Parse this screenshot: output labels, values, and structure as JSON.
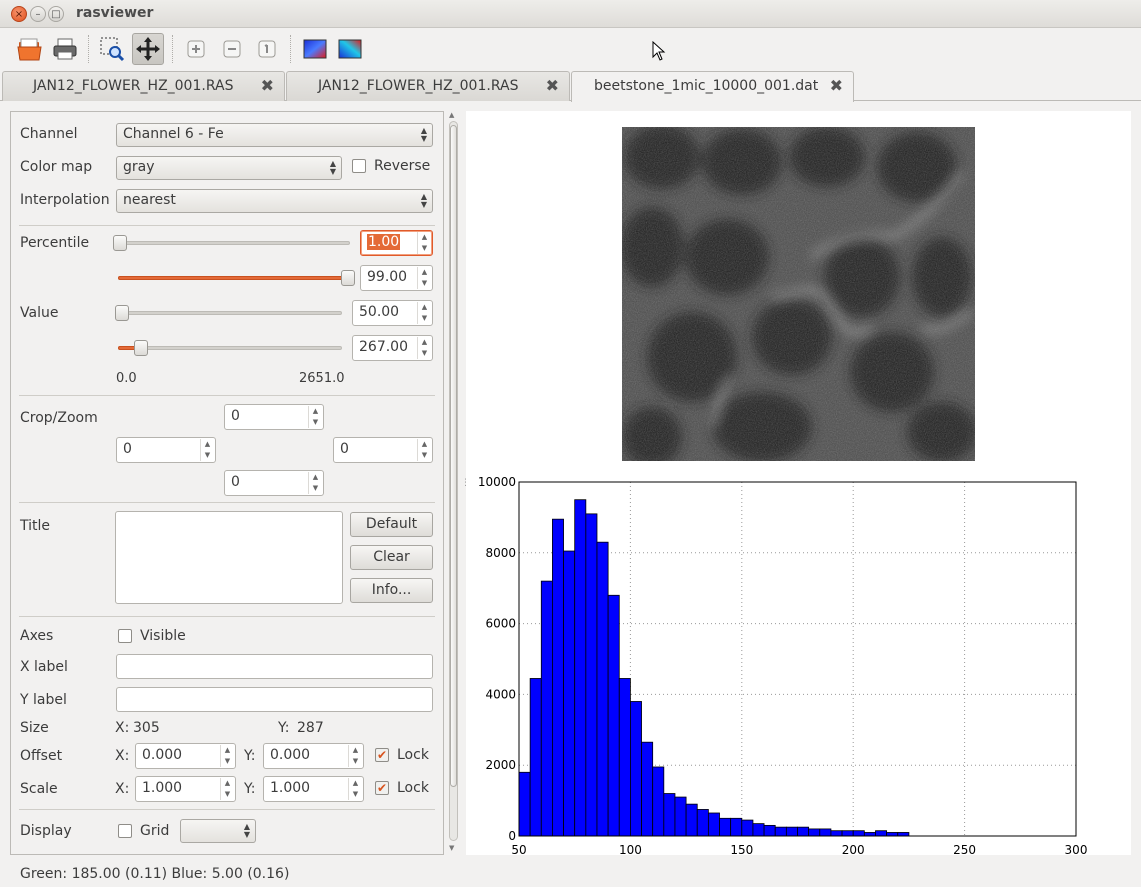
{
  "app": {
    "title": "rasviewer"
  },
  "window_buttons": {
    "close": "×",
    "minimize": "–",
    "maximize": "□"
  },
  "toolbar": {
    "tools": [
      "open-folder-icon",
      "print-icon",
      "zoom-select-icon",
      "pan-move-icon",
      "zoom-in-icon",
      "zoom-out-icon",
      "zoom-reset-icon",
      "colormap-icon",
      "colormap-alt-icon"
    ]
  },
  "tabs": [
    {
      "label": "JAN12_FLOWER_HZ_001.RAS",
      "close": "✖"
    },
    {
      "label": "JAN12_FLOWER_HZ_001.RAS",
      "close": "✖"
    },
    {
      "label": "beetstone_1mic_10000_001.dat",
      "close": "✖",
      "selected": true
    }
  ],
  "panel": {
    "channel": {
      "label": "Channel",
      "value": "Channel 6 - Fe"
    },
    "colormap": {
      "label": "Color map",
      "value": "gray",
      "reverse_label": "Reverse",
      "reverse": false
    },
    "interpolation": {
      "label": "Interpolation",
      "value": "nearest"
    },
    "percentile": {
      "label": "Percentile",
      "low": "1.00",
      "high": "99.00",
      "low_level": 0.01,
      "high_level": 0.99
    },
    "value": {
      "label": "Value",
      "low": "50.00",
      "high": "267.00",
      "min": "0.0",
      "max": "2651.0",
      "low_level": 0.019,
      "high_level": 0.101
    },
    "crop": {
      "label": "Crop/Zoom",
      "top": "0",
      "left": "0",
      "right": "0",
      "bottom": "0"
    },
    "title": {
      "label": "Title",
      "default_btn": "Default",
      "clear_btn": "Clear",
      "info_btn": "Info..."
    },
    "axes": {
      "label": "Axes",
      "visible_label": "Visible",
      "visible": false,
      "xlabel_label": "X label",
      "ylabel_label": "Y label"
    },
    "size": {
      "label": "Size",
      "x_prefix": "X:",
      "x": "305",
      "y_prefix": "Y:",
      "y": "287"
    },
    "offset": {
      "label": "Offset",
      "x_prefix": "X:",
      "x": "0.000",
      "y_prefix": "Y:",
      "y": "0.000",
      "lock_label": "Lock",
      "lock": true
    },
    "scale": {
      "label": "Scale",
      "x_prefix": "X:",
      "x": "1.000",
      "y_prefix": "Y:",
      "y": "1.000",
      "lock_label": "Lock",
      "lock": true
    },
    "display": {
      "label": "Display",
      "grid_label": "Grid",
      "grid": false
    }
  },
  "status": {
    "text": "Green: 185.00 (0.11)  Blue: 5.00 (0.16)"
  },
  "chart_data": {
    "type": "bar",
    "bin_edges": [
      50,
      55,
      60,
      65,
      70,
      75,
      80,
      85,
      90,
      95,
      100,
      105,
      110,
      115,
      120,
      125,
      130,
      135,
      140,
      145,
      150,
      155,
      160,
      165,
      170,
      175,
      180,
      185,
      190,
      195,
      200,
      205,
      210,
      215,
      220,
      225,
      230,
      235,
      240,
      245,
      250,
      255,
      260,
      265,
      270
    ],
    "values": [
      1800,
      4450,
      7200,
      8950,
      8050,
      9500,
      9100,
      8300,
      6800,
      4450,
      3800,
      2650,
      1950,
      1200,
      1100,
      900,
      750,
      650,
      500,
      500,
      450,
      350,
      300,
      250,
      250,
      250,
      200,
      200,
      150,
      150,
      150,
      100,
      150,
      100,
      100,
      0,
      0,
      0,
      0,
      0,
      0,
      0,
      0,
      0
    ],
    "bar_color": "#0000ff",
    "xlim": [
      50,
      300
    ],
    "ylim": [
      0,
      10000
    ],
    "xticks": [
      "50",
      "100",
      "150",
      "200",
      "250",
      "300"
    ],
    "yticks": [
      "0",
      "2000",
      "4000",
      "6000",
      "8000",
      "10000"
    ],
    "grid": true,
    "title": "",
    "xlabel": "",
    "ylabel": ""
  }
}
